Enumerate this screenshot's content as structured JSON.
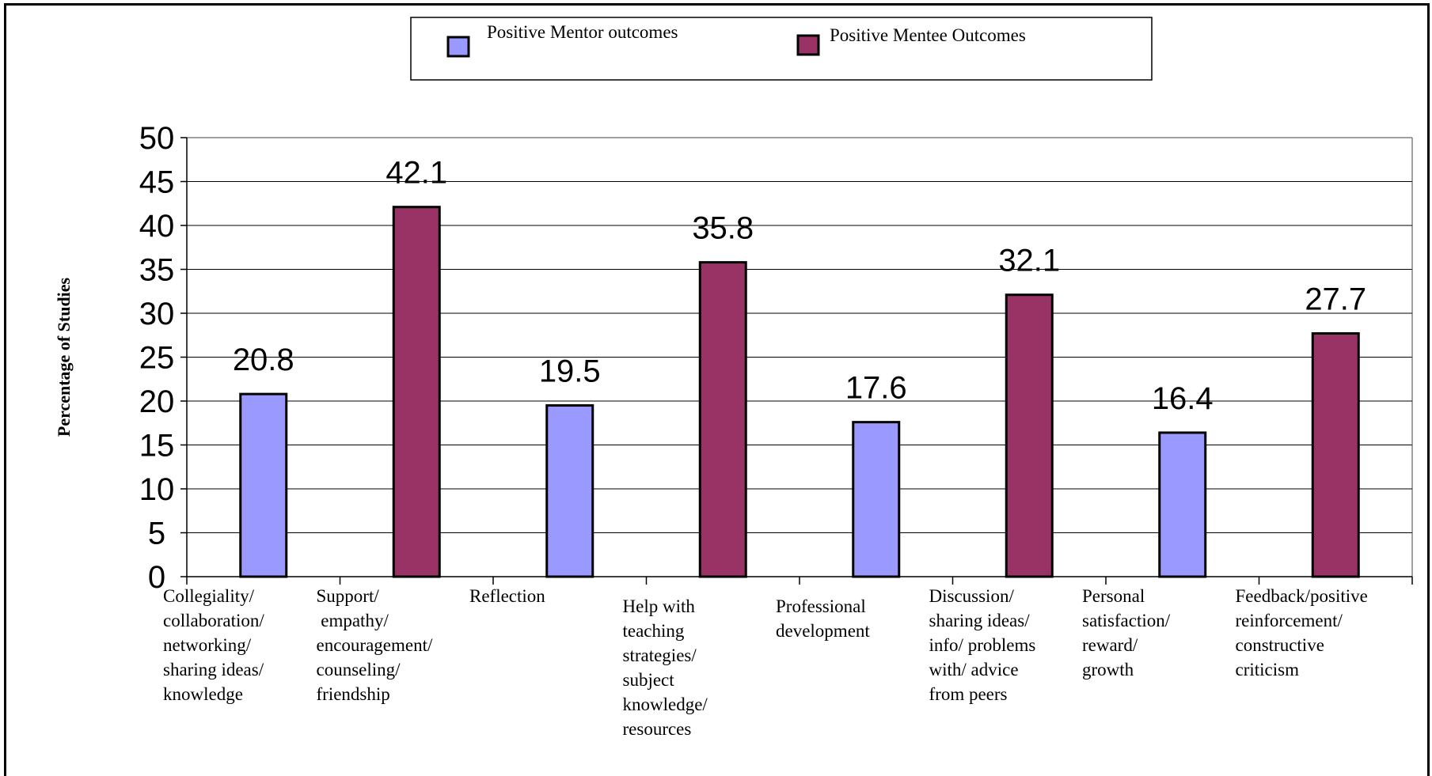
{
  "chart_data": {
    "type": "bar",
    "title": "",
    "xlabel": "",
    "ylabel": "Percentage of Studies",
    "ylim": [
      0,
      50
    ],
    "yticks": [
      0,
      5,
      10,
      15,
      20,
      25,
      30,
      35,
      40,
      45,
      50
    ],
    "grid": true,
    "legend_position": "top-center",
    "categories": [
      [
        "Collegiality/",
        "collaboration/",
        "networking/",
        "sharing ideas/",
        "knowledge"
      ],
      [
        "Support/",
        " empathy/",
        "encouragement/",
        "counseling/",
        "friendship"
      ],
      [
        "Reflection"
      ],
      [
        "Help with",
        "teaching",
        "strategies/",
        "subject",
        "knowledge/",
        "resources"
      ],
      [
        "Professional",
        "development"
      ],
      [
        "Discussion/",
        "sharing ideas/",
        "info/ problems",
        "with/ advice",
        "from peers"
      ],
      [
        "Personal",
        "satisfaction/",
        "reward/",
        "growth"
      ],
      [
        "Feedback/positive",
        "reinforcement/",
        "constructive",
        "criticism"
      ]
    ],
    "series": [
      {
        "name": "Positive Mentor outcomes",
        "color": "#9999ff",
        "values": [
          20.8,
          null,
          19.5,
          null,
          17.6,
          null,
          16.4,
          null
        ]
      },
      {
        "name": "Positive Mentee Outcomes",
        "color": "#993366",
        "values": [
          null,
          42.1,
          null,
          35.8,
          null,
          32.1,
          null,
          27.7
        ]
      }
    ],
    "data_labels": [
      "20.8",
      "42.1",
      "19.5",
      "35.8",
      "17.6",
      "32.1",
      "16.4",
      "27.7"
    ]
  }
}
